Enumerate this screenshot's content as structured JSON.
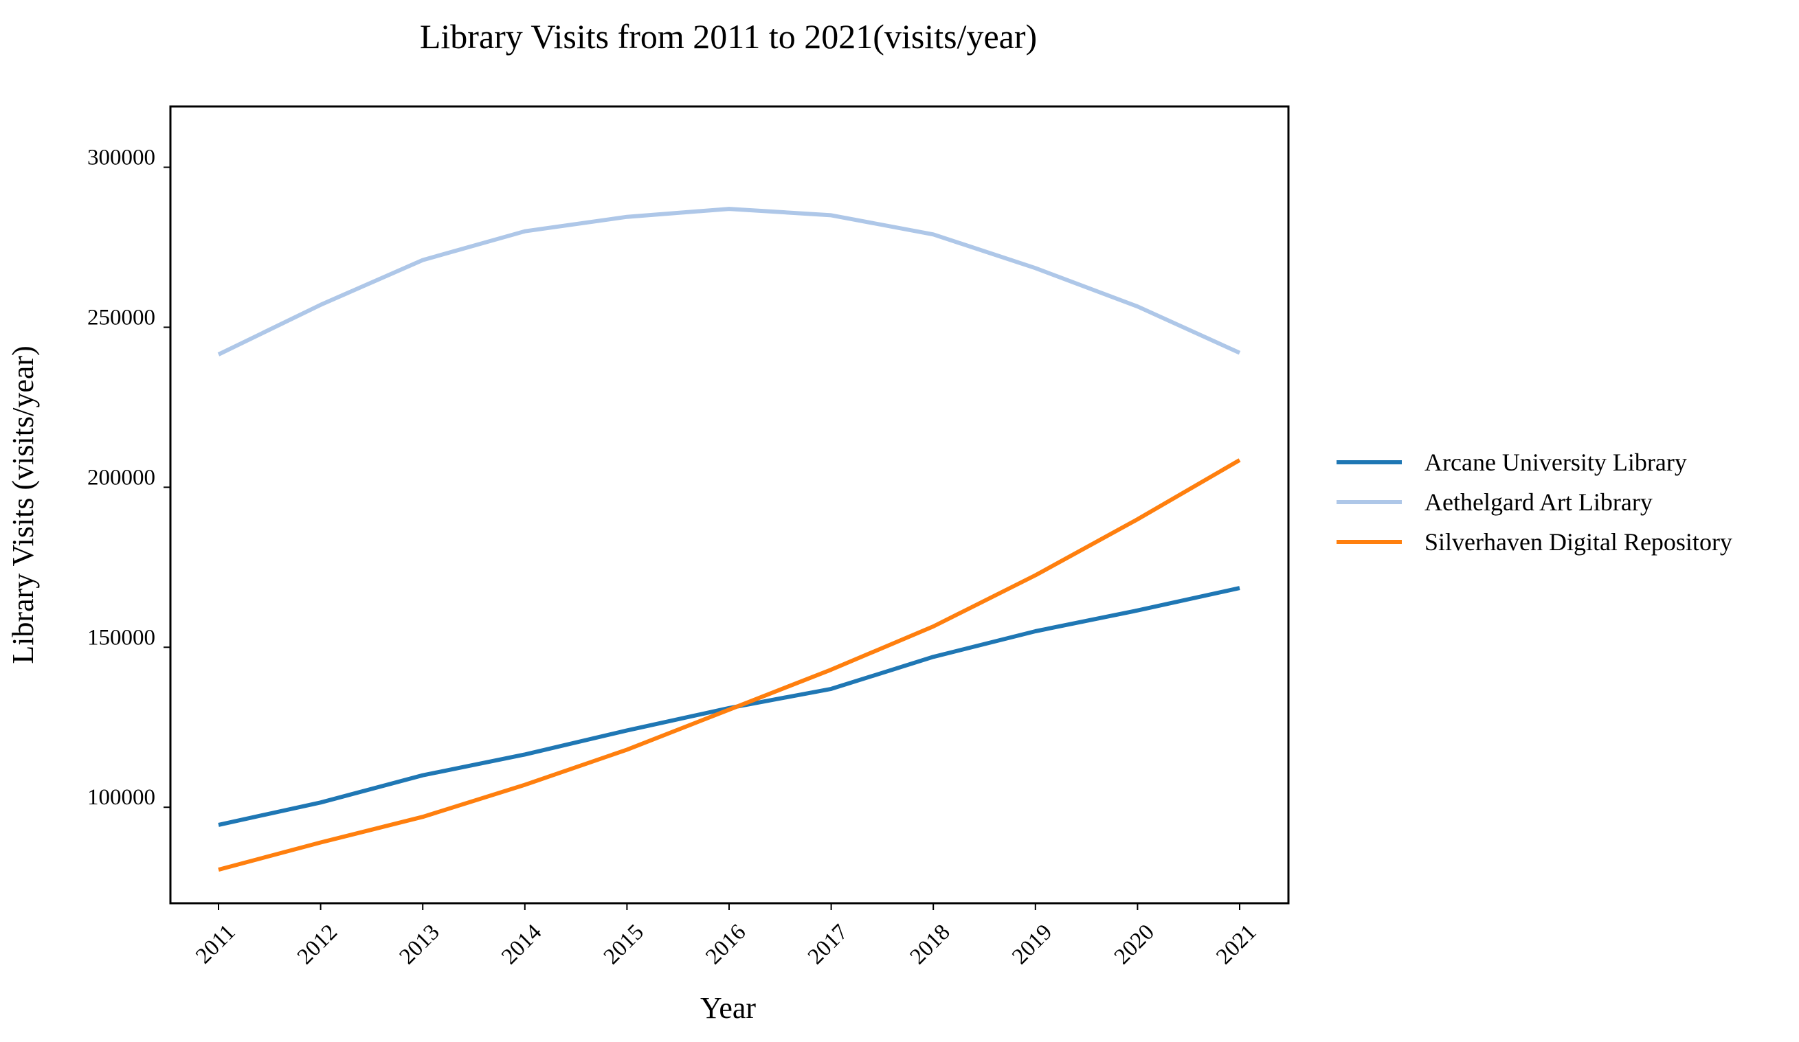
{
  "chart_data": {
    "type": "line",
    "title": "Library Visits from 2011 to 2021(visits/year)",
    "xlabel": "Year",
    "ylabel": "Library Visits (visits/year)",
    "x": [
      "2011",
      "2012",
      "2013",
      "2014",
      "2015",
      "2016",
      "2017",
      "2018",
      "2019",
      "2020",
      "2021"
    ],
    "ylim": [
      70000,
      319000
    ],
    "yticks": [
      100000,
      150000,
      200000,
      250000,
      300000
    ],
    "grid": false,
    "legend_position": "right",
    "series": [
      {
        "name": "Arcane University Library",
        "color": "#1f77b4",
        "values": [
          94500,
          101500,
          110000,
          116500,
          124000,
          131000,
          137000,
          147000,
          155000,
          161500,
          168500
        ]
      },
      {
        "name": "Aethelgard Art Library",
        "color": "#aec7e8",
        "values": [
          241500,
          257000,
          271000,
          280000,
          284500,
          287000,
          285000,
          279000,
          268500,
          256500,
          242000
        ]
      },
      {
        "name": "Silverhaven Digital Repository",
        "color": "#ff7f0e",
        "values": [
          80500,
          89000,
          97000,
          107000,
          118000,
          130500,
          143000,
          156500,
          172500,
          190000,
          208500
        ]
      }
    ]
  }
}
